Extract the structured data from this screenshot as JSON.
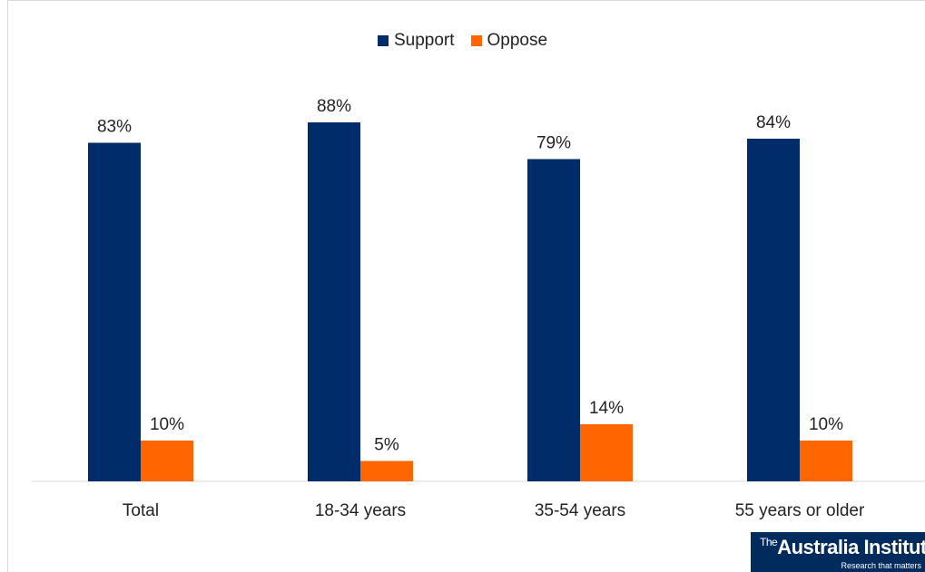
{
  "chart_data": {
    "type": "bar",
    "categories": [
      "Total",
      "18-34 years",
      "35-54 years",
      "55 years or older"
    ],
    "series": [
      {
        "name": "Support",
        "values": [
          83,
          88,
          79,
          84
        ],
        "color": "#002d6a",
        "labels": [
          "83%",
          "88%",
          "79%",
          "84%"
        ]
      },
      {
        "name": "Oppose",
        "values": [
          10,
          5,
          14,
          10
        ],
        "color": "#ff6600",
        "labels": [
          "10%",
          "5%",
          "14%",
          "10%"
        ]
      }
    ],
    "ylim": [
      0,
      100
    ],
    "legend": "top-center",
    "grid": false
  },
  "logo": {
    "prefix": "The",
    "name": "Australia Institute",
    "tagline": "Research that matters"
  }
}
